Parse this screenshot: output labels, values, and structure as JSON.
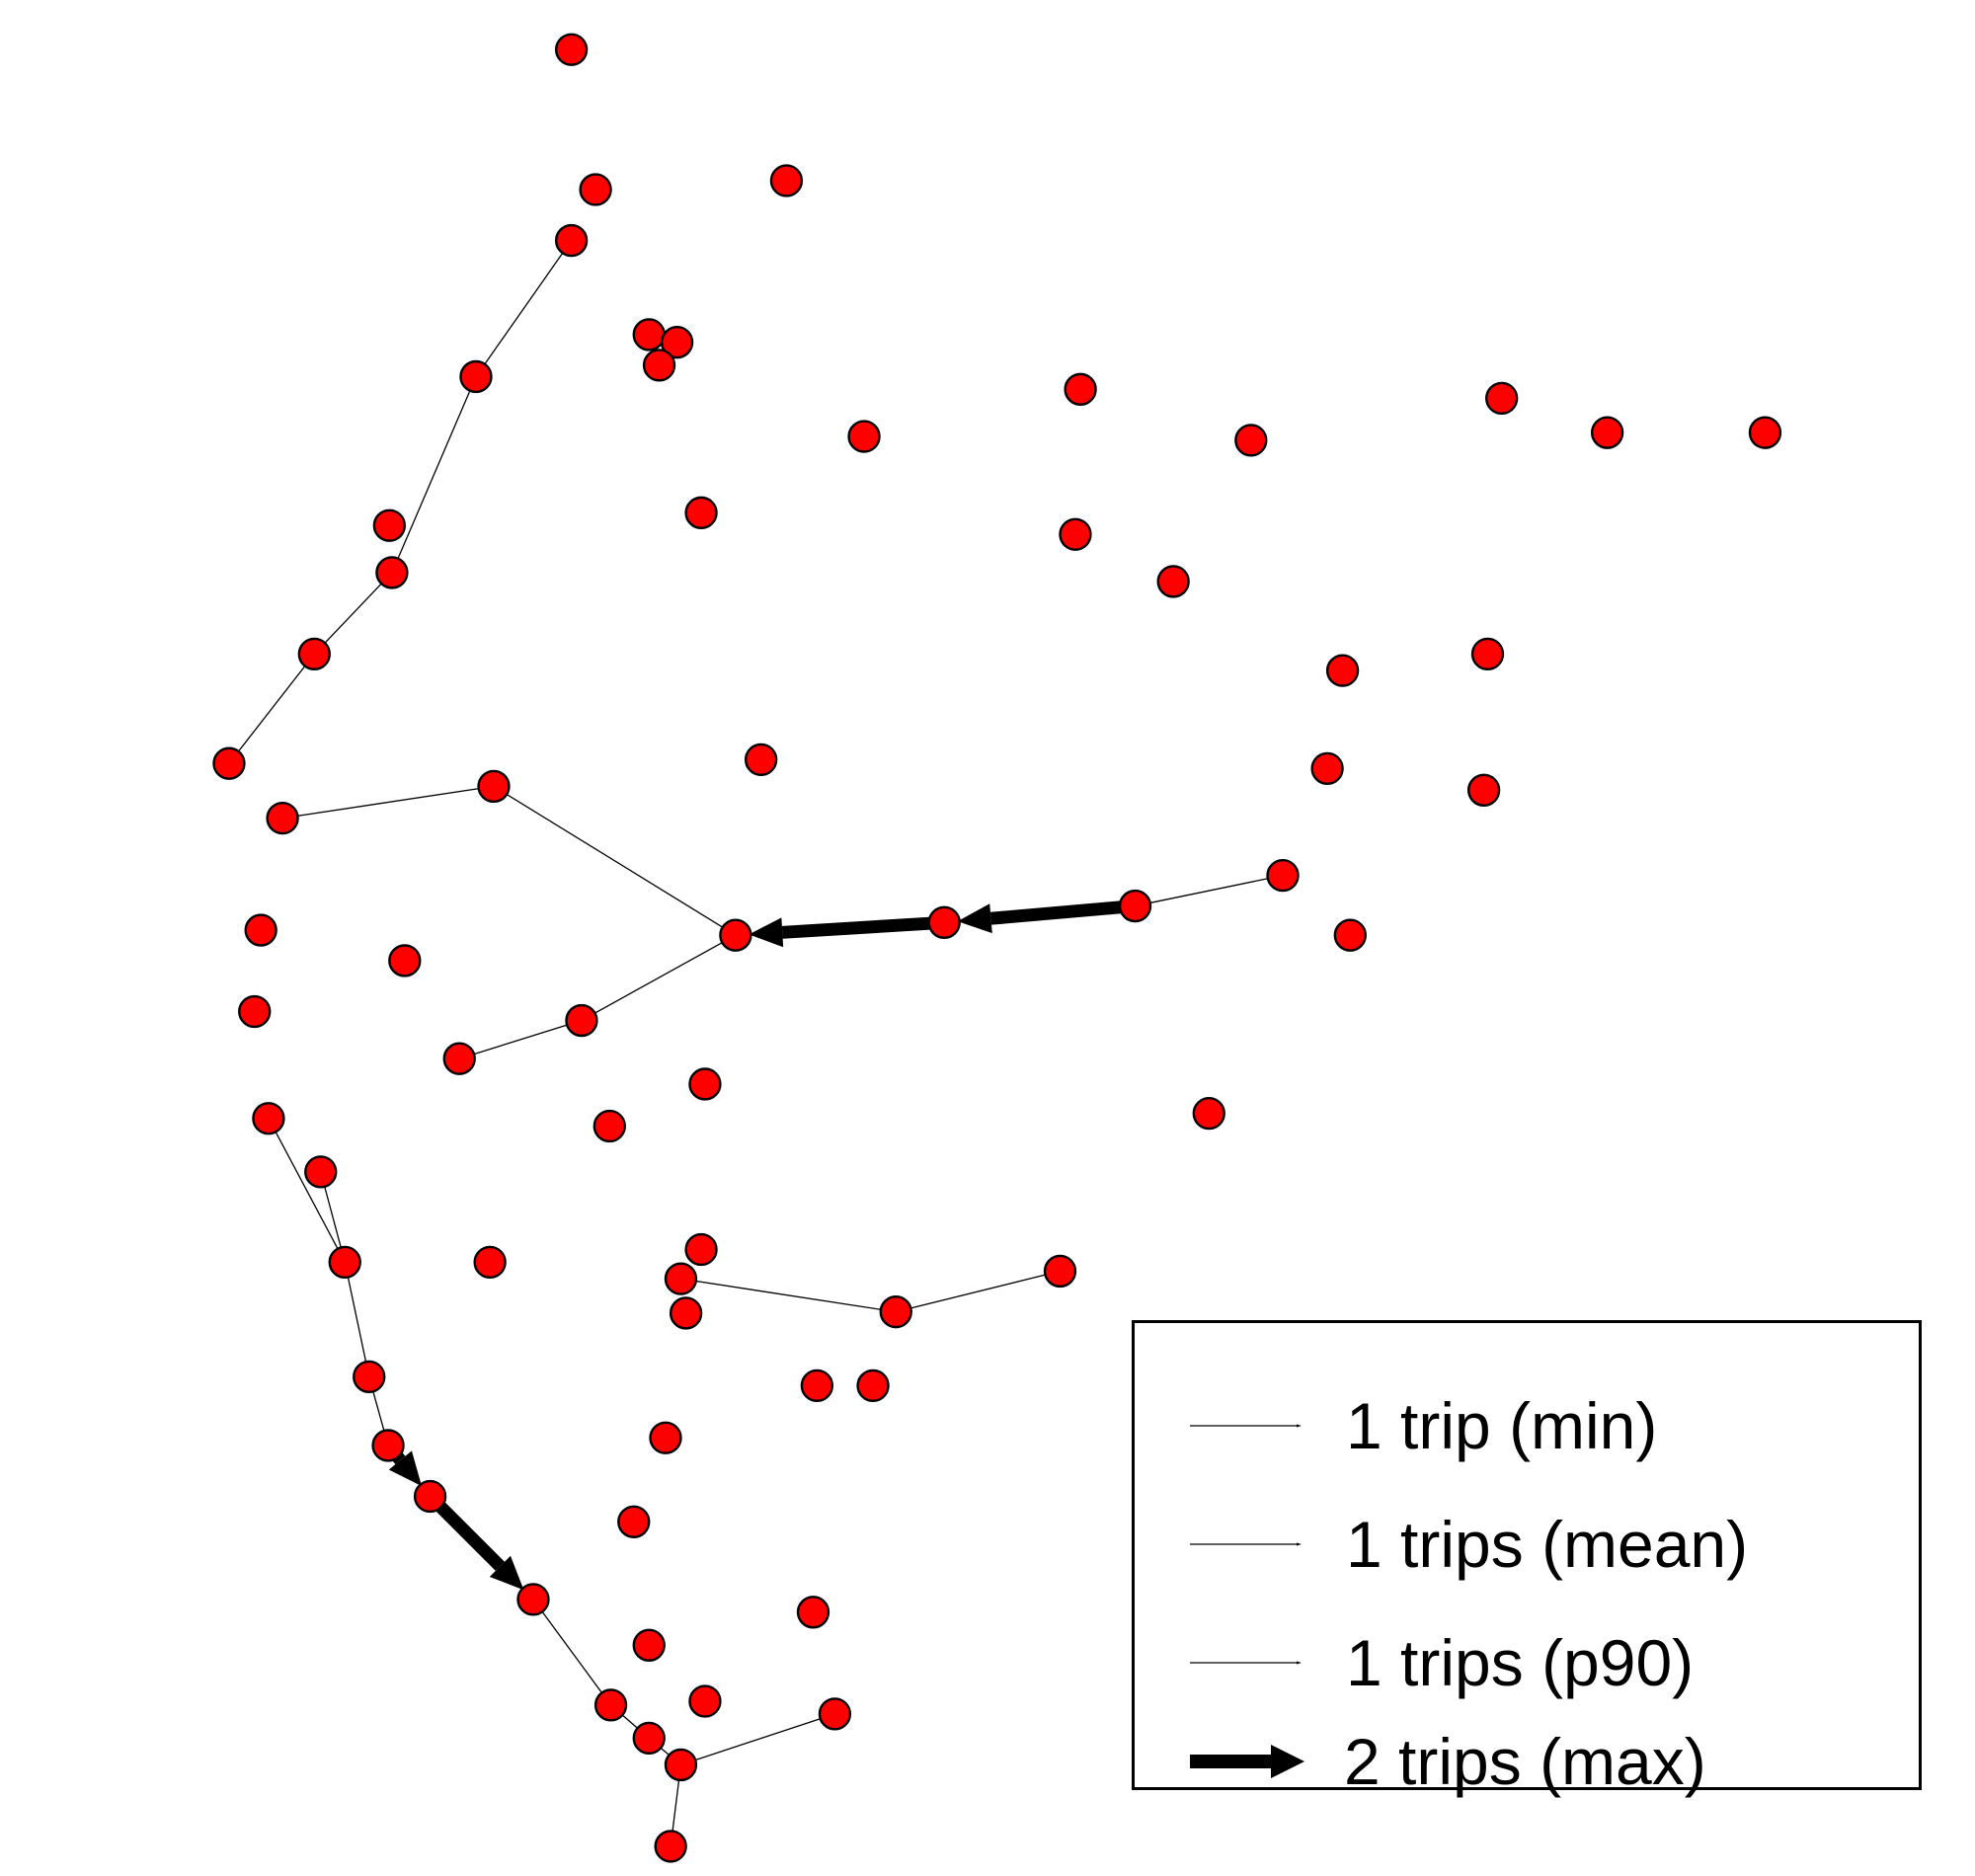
{
  "colors": {
    "node_fill": "#ff0000",
    "node_stroke": "#000000",
    "edge": "#000000",
    "background": "#ffffff"
  },
  "legend": {
    "items": [
      {
        "label": "1 trip (min)",
        "trips": 1
      },
      {
        "label": "1 trips (mean)",
        "trips": 1
      },
      {
        "label": "1 trips (p90)",
        "trips": 1
      },
      {
        "label": "2 trips (max)",
        "trips": 2
      }
    ]
  },
  "trip_counts": {
    "min": 1,
    "mean": 1,
    "p90": 1,
    "max": 2
  }
}
